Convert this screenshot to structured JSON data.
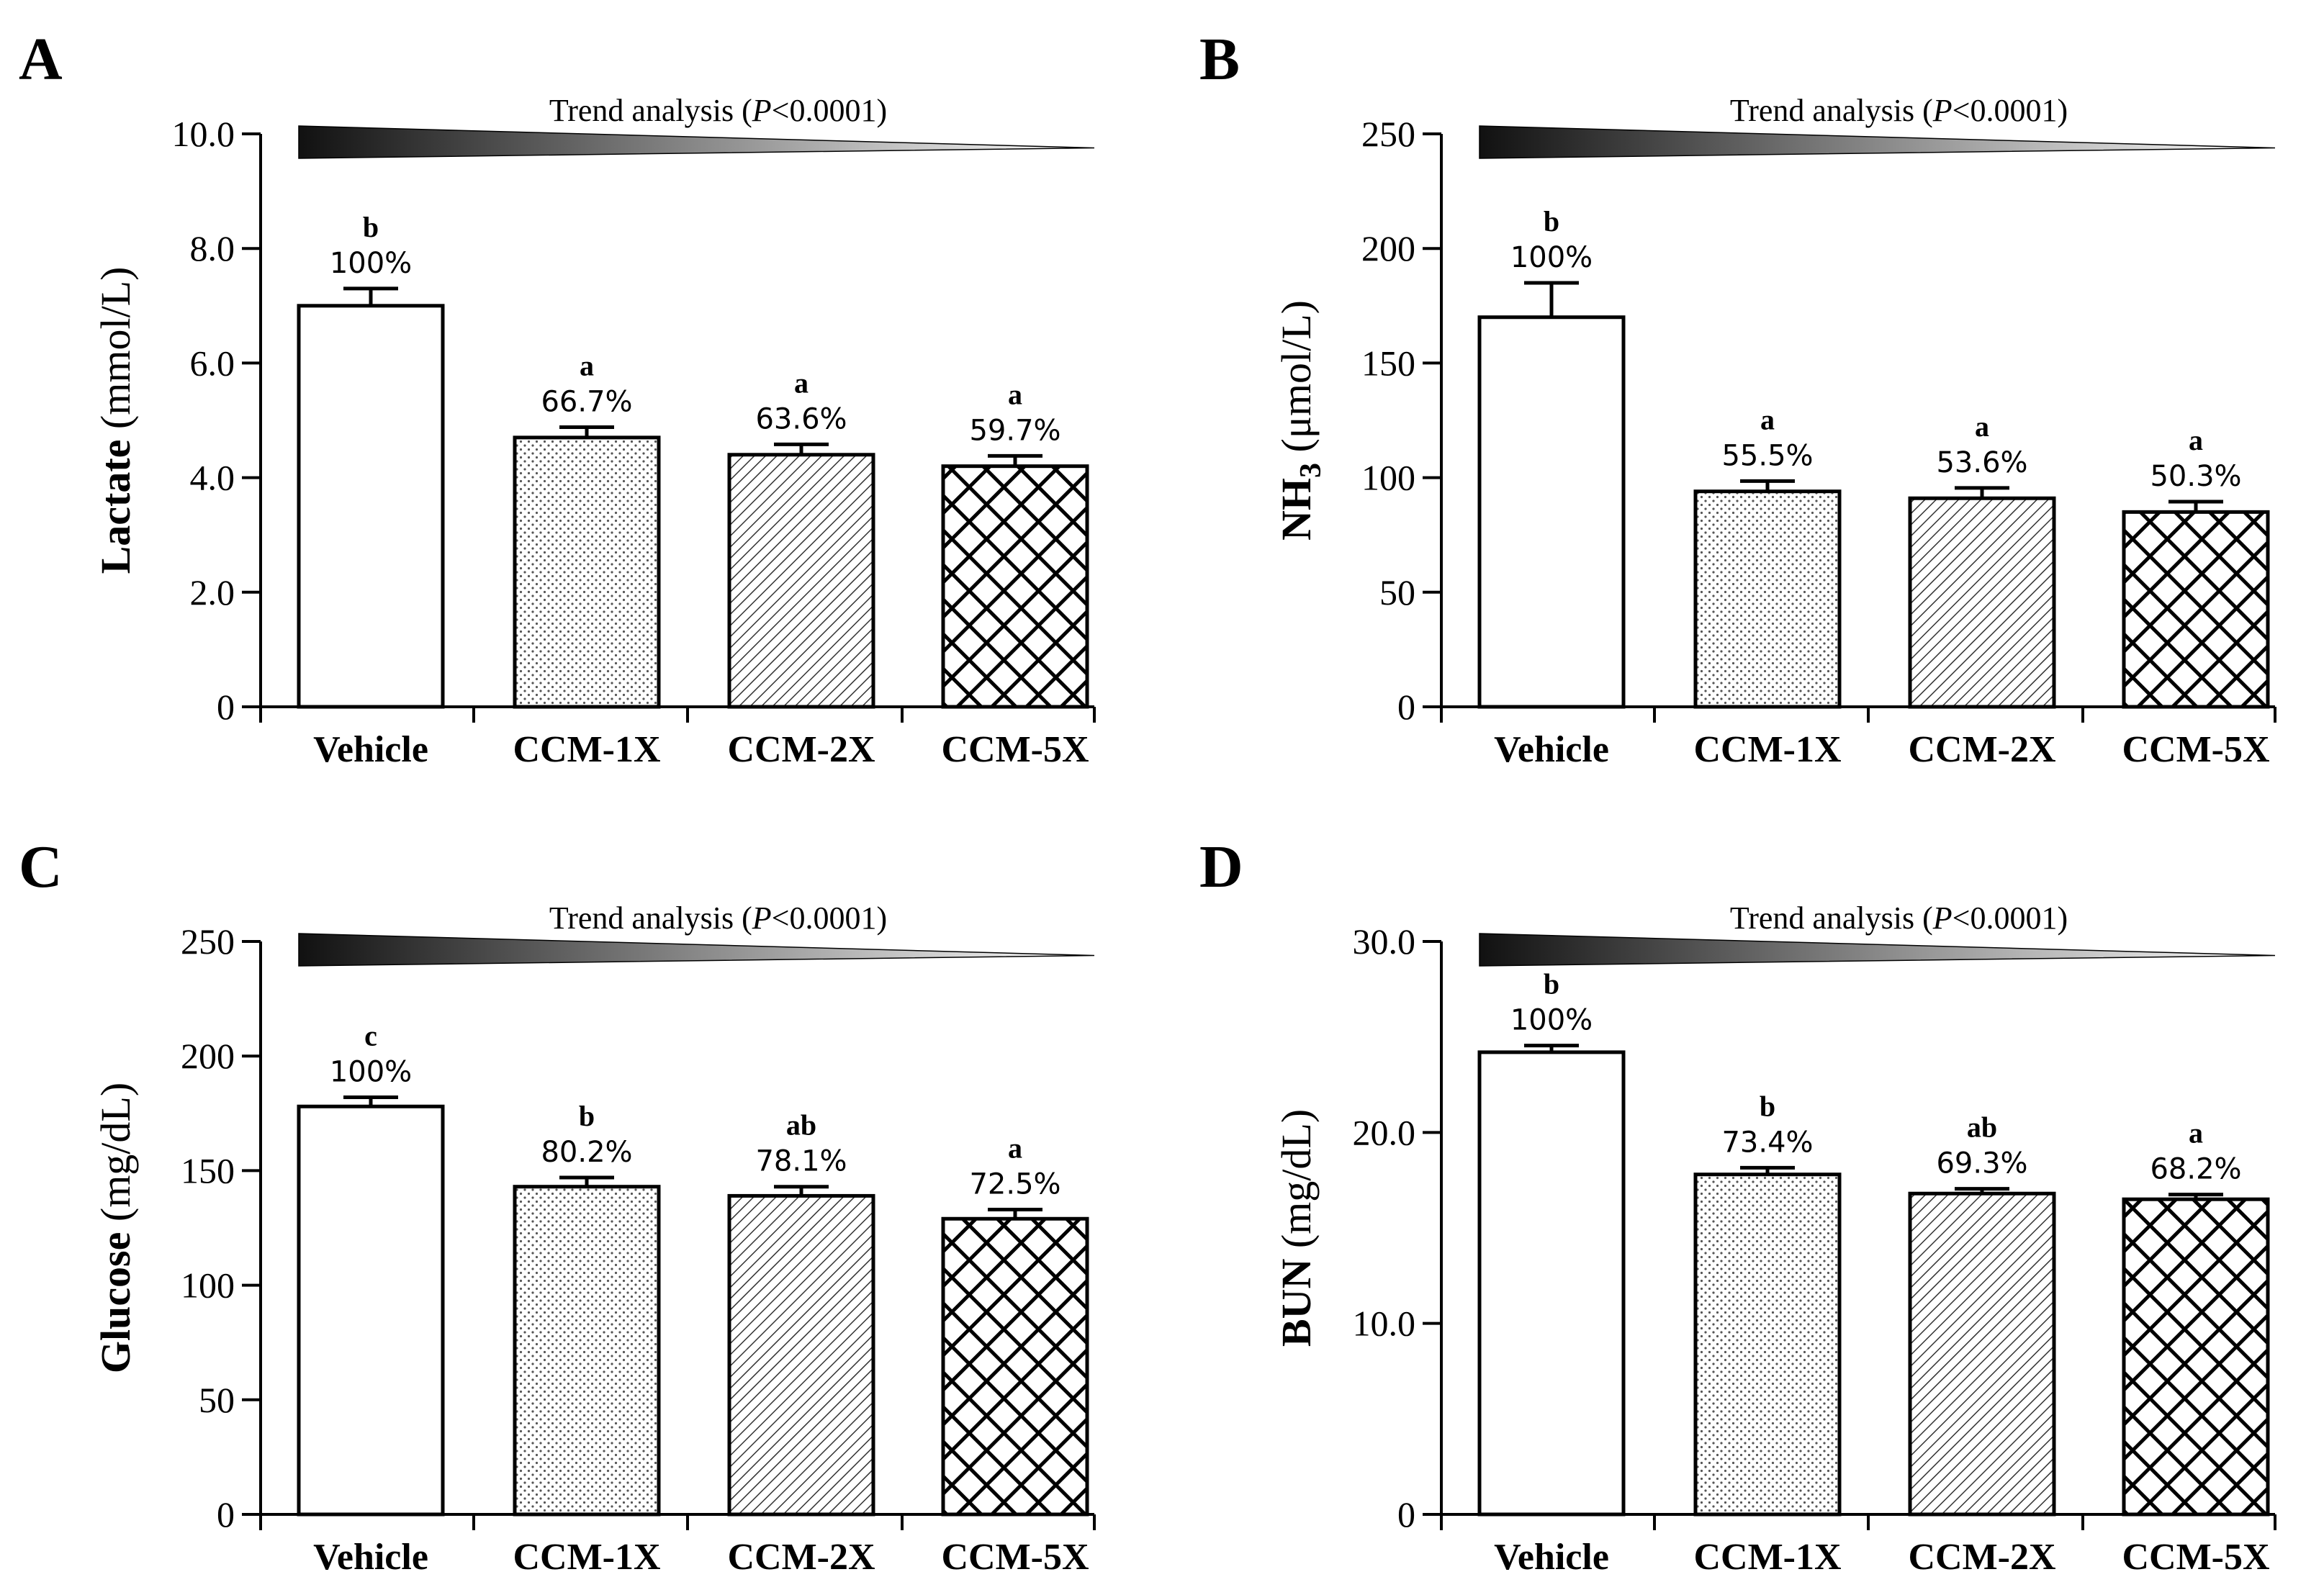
{
  "figure": {
    "trend_text": {
      "prefix": "Trend analysis (",
      "italic": "P",
      "suffix": "<0.0001)"
    },
    "colors": {
      "ink": "#000000",
      "bar_fill": "#ffffff",
      "gradient_dark": "#111111",
      "gradient_light": "#ffffff"
    }
  },
  "chart_data": [
    {
      "panel": "A",
      "type": "bar",
      "ylabel_bold": "Lactate",
      "ylabel_rest": " (mmol/L)",
      "categories": [
        "Vehicle",
        "CCM-1X",
        "CCM-2X",
        "CCM-5X"
      ],
      "values": [
        7.0,
        4.7,
        4.4,
        4.2
      ],
      "errors": [
        0.3,
        0.18,
        0.18,
        0.18
      ],
      "significance": [
        "b",
        "a",
        "a",
        "a"
      ],
      "percent_labels": [
        "100%",
        "66.7%",
        "63.6%",
        "59.7%"
      ],
      "patterns": [
        "none",
        "dots",
        "hatch",
        "cross"
      ],
      "ylim": [
        0,
        10
      ],
      "yticks": [
        0,
        2,
        4,
        6,
        8,
        10
      ],
      "ytick_labels": [
        "0",
        "2.0",
        "4.0",
        "6.0",
        "8.0",
        "10.0"
      ]
    },
    {
      "panel": "B",
      "type": "bar",
      "ylabel_bold": "NH",
      "ylabel_sub": "3",
      "ylabel_rest": " (μmol/L)",
      "categories": [
        "Vehicle",
        "CCM-1X",
        "CCM-2X",
        "CCM-5X"
      ],
      "values": [
        170,
        94,
        91,
        85
      ],
      "errors": [
        15,
        4.5,
        4.5,
        4.5
      ],
      "significance": [
        "b",
        "a",
        "a",
        "a"
      ],
      "percent_labels": [
        "100%",
        "55.5%",
        "53.6%",
        "50.3%"
      ],
      "patterns": [
        "none",
        "dots",
        "hatch",
        "cross"
      ],
      "ylim": [
        0,
        250
      ],
      "yticks": [
        0,
        50,
        100,
        150,
        200,
        250
      ],
      "ytick_labels": [
        "0",
        "50",
        "100",
        "150",
        "200",
        "250"
      ]
    },
    {
      "panel": "C",
      "type": "bar",
      "ylabel_bold": "Glucose",
      "ylabel_rest": " (mg/dL)",
      "categories": [
        "Vehicle",
        "CCM-1X",
        "CCM-2X",
        "CCM-5X"
      ],
      "values": [
        178,
        143,
        139,
        129
      ],
      "errors": [
        4,
        4,
        4,
        4
      ],
      "significance": [
        "c",
        "b",
        "ab",
        "a"
      ],
      "percent_labels": [
        "100%",
        "80.2%",
        "78.1%",
        "72.5%"
      ],
      "patterns": [
        "none",
        "dots",
        "hatch",
        "cross"
      ],
      "ylim": [
        0,
        250
      ],
      "yticks": [
        0,
        50,
        100,
        150,
        200,
        250
      ],
      "ytick_labels": [
        "0",
        "50",
        "100",
        "150",
        "200",
        "250"
      ]
    },
    {
      "panel": "D",
      "type": "bar",
      "ylabel_bold": "BUN",
      "ylabel_rest": " (mg/dL)",
      "categories": [
        "Vehicle",
        "CCM-1X",
        "CCM-2X",
        "CCM-5X"
      ],
      "values": [
        24.2,
        17.8,
        16.8,
        16.5
      ],
      "errors": [
        0.35,
        0.35,
        0.25,
        0.25
      ],
      "significance": [
        "b",
        "b",
        "ab",
        "a"
      ],
      "percent_labels": [
        "100%",
        "73.4%",
        "69.3%",
        "68.2%"
      ],
      "patterns": [
        "none",
        "dots",
        "hatch",
        "cross"
      ],
      "ylim": [
        0,
        30
      ],
      "yticks": [
        0,
        10,
        20,
        30
      ],
      "ytick_labels": [
        "0",
        "10.0",
        "20.0",
        "30.0"
      ]
    }
  ]
}
